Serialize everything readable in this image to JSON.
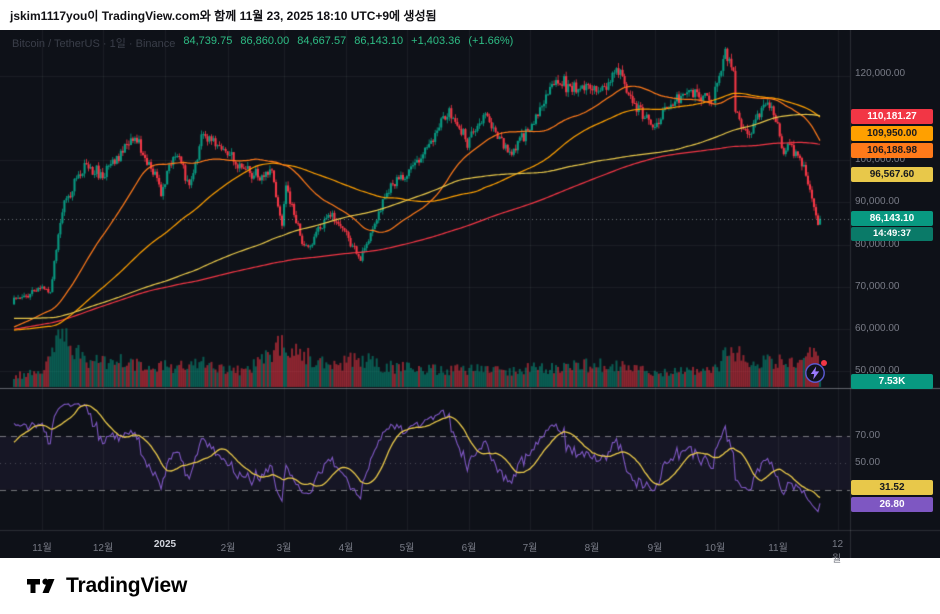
{
  "attribution": "jskim1117you이 TradingView.com와 함께 11월 23, 2025 18:10 UTC+9에 생성됨",
  "brand": {
    "wordmark": "TradingView"
  },
  "legend": {
    "symbol_line": "Bitcoin / TetherUS · 1일 · Binance",
    "open": "84,739.75",
    "high": "86,860.00",
    "low": "84,667.57",
    "close": "86,143.10",
    "change": "+1,403.36",
    "change_pct": "(+1.66%)"
  },
  "right_axis": {
    "ma_badges": [
      {
        "text": "110,181.27",
        "bg": "#F23645",
        "fg": "#FFFFFF"
      },
      {
        "text": "109,950.00",
        "bg": "#FFA000",
        "fg": "#15181F"
      },
      {
        "text": "106,188.98",
        "bg": "#FF7A1A",
        "fg": "#15181F"
      },
      {
        "text": "96,567.60",
        "bg": "#E8C84A",
        "fg": "#15181F"
      }
    ],
    "last_price": {
      "text": "86,143.10",
      "bg": "#089981",
      "fg": "#FFFFFF"
    },
    "countdown": {
      "text": "14:49:37",
      "bg": "#0A7A68",
      "fg": "#FFFFFF"
    },
    "volume_badge": {
      "text": "7.53K",
      "bg": "#089981",
      "fg": "#FFFFFF"
    },
    "rsi_ma_badge": {
      "text": "31.52",
      "bg": "#E8C84A",
      "fg": "#15181F"
    },
    "rsi_badge": {
      "text": "26.80",
      "bg": "#7E57C2",
      "fg": "#FFFFFF"
    },
    "price_ticks": [
      "120,000.00",
      "100,000.00",
      "90,000.00",
      "80,000.00",
      "70,000.00",
      "60,000.00",
      "50,000.00"
    ],
    "rsi_ticks": [
      "70.00",
      "50.00"
    ]
  },
  "time_axis": {
    "labels": [
      "11월",
      "12월",
      "2025",
      "2월",
      "3월",
      "4월",
      "5월",
      "6월",
      "7월",
      "8월",
      "9월",
      "10월",
      "11월",
      "12월"
    ],
    "highlight_index": 2
  },
  "chart_data": {
    "type": "candlestick",
    "title": "Bitcoin / TetherUS · 1일 · Binance",
    "symbol": "Bitcoin / TetherUS",
    "interval": "1일",
    "exchange": "Binance",
    "up_color": "#089981",
    "down_color": "#F23645",
    "background": "#0E1118",
    "last": {
      "open": 84739.75,
      "high": 86860.0,
      "low": 84667.57,
      "close": 86143.1,
      "change": 1403.36,
      "change_pct": 1.66
    },
    "price_axis": {
      "visible_ticks": [
        120000,
        100000,
        90000,
        80000,
        70000,
        60000,
        50000
      ],
      "approx_range": [
        46000,
        129000
      ]
    },
    "total_days": 401,
    "month_start_days": [
      14,
      44,
      75,
      106,
      134,
      165,
      195,
      226,
      256,
      287,
      318,
      348,
      379,
      409
    ],
    "anchors": [
      [
        -310,
        42000
      ],
      [
        -260,
        46500
      ],
      [
        -230,
        62000
      ],
      [
        -215,
        71000
      ],
      [
        -170,
        63500
      ],
      [
        -140,
        68500
      ],
      [
        -110,
        61500
      ],
      [
        -80,
        64500
      ],
      [
        -75,
        54500
      ],
      [
        -48,
        57500
      ],
      [
        -17,
        60500
      ],
      [
        -5,
        62300
      ],
      [
        0,
        67400
      ],
      [
        14,
        69400
      ],
      [
        18,
        69300
      ],
      [
        24,
        88700
      ],
      [
        35,
        98900
      ],
      [
        44,
        96400
      ],
      [
        60,
        106100
      ],
      [
        73,
        92600
      ],
      [
        80,
        102100
      ],
      [
        87,
        94500
      ],
      [
        94,
        106100
      ],
      [
        105,
        102400
      ],
      [
        115,
        97400
      ],
      [
        128,
        96300
      ],
      [
        133,
        84300
      ],
      [
        135,
        94200
      ],
      [
        144,
        78500
      ],
      [
        157,
        87500
      ],
      [
        165,
        82500
      ],
      [
        172,
        76300
      ],
      [
        186,
        93400
      ],
      [
        195,
        96500
      ],
      [
        206,
        104100
      ],
      [
        216,
        111600
      ],
      [
        225,
        104600
      ],
      [
        234,
        110200
      ],
      [
        247,
        101000
      ],
      [
        255,
        107100
      ],
      [
        265,
        115900
      ],
      [
        269,
        119800
      ],
      [
        280,
        115800
      ],
      [
        295,
        118200
      ],
      [
        299,
        123300
      ],
      [
        308,
        112800
      ],
      [
        317,
        108200
      ],
      [
        335,
        117000
      ],
      [
        347,
        114000
      ],
      [
        353,
        125900
      ],
      [
        357,
        121600
      ],
      [
        358,
        112000
      ],
      [
        364,
        106500
      ],
      [
        374,
        114500
      ],
      [
        378,
        109800
      ],
      [
        382,
        101500
      ],
      [
        386,
        103500
      ],
      [
        391,
        99000
      ],
      [
        395,
        93500
      ],
      [
        399,
        84600
      ],
      [
        400,
        86143.1
      ]
    ],
    "moving_averages": [
      {
        "label_value": 110181.27,
        "color": "#F23645",
        "window": 300
      },
      {
        "label_value": 109950.0,
        "color": "#FFA000",
        "window": 100
      },
      {
        "label_value": 106188.98,
        "color": "#FF7A1A",
        "window": 45
      },
      {
        "label_value": 96567.6,
        "color": "#E8C84A",
        "window": 200
      }
    ],
    "volume": {
      "last_label": "7.53K",
      "envelope": [
        [
          -310,
          0.2
        ],
        [
          0,
          0.2
        ],
        [
          14,
          0.25
        ],
        [
          24,
          1.0
        ],
        [
          30,
          0.6
        ],
        [
          35,
          0.5
        ],
        [
          49,
          0.45
        ],
        [
          73,
          0.35
        ],
        [
          94,
          0.4
        ],
        [
          115,
          0.28
        ],
        [
          133,
          0.8
        ],
        [
          136,
          0.7
        ],
        [
          144,
          0.55
        ],
        [
          160,
          0.4
        ],
        [
          172,
          0.5
        ],
        [
          186,
          0.35
        ],
        [
          216,
          0.3
        ],
        [
          247,
          0.3
        ],
        [
          269,
          0.35
        ],
        [
          299,
          0.4
        ],
        [
          317,
          0.25
        ],
        [
          347,
          0.28
        ],
        [
          357,
          0.7
        ],
        [
          364,
          0.4
        ],
        [
          382,
          0.45
        ],
        [
          399,
          0.55
        ],
        [
          400,
          0.18
        ]
      ]
    },
    "rsi": {
      "period": 14,
      "last": 26.8,
      "ma_last": 31.52,
      "levels": [
        70,
        50,
        30
      ],
      "line_color": "#7E57C2",
      "ma_color": "#E8C84A"
    }
  }
}
